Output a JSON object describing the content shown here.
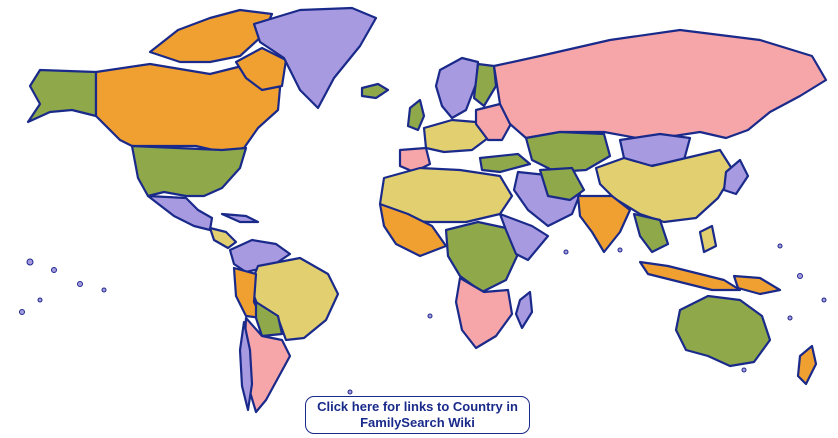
{
  "map": {
    "palette": {
      "orange": "#f0a030",
      "purple": "#a89ae0",
      "olive": "#8fa84a",
      "pink": "#f6a5a8",
      "yellow": "#e2d070",
      "outline": "#1a2a8a",
      "background": "#ffffff"
    }
  },
  "cta": {
    "line1": "Click here for links to Country in",
    "line2": "FamilySearch Wiki"
  }
}
